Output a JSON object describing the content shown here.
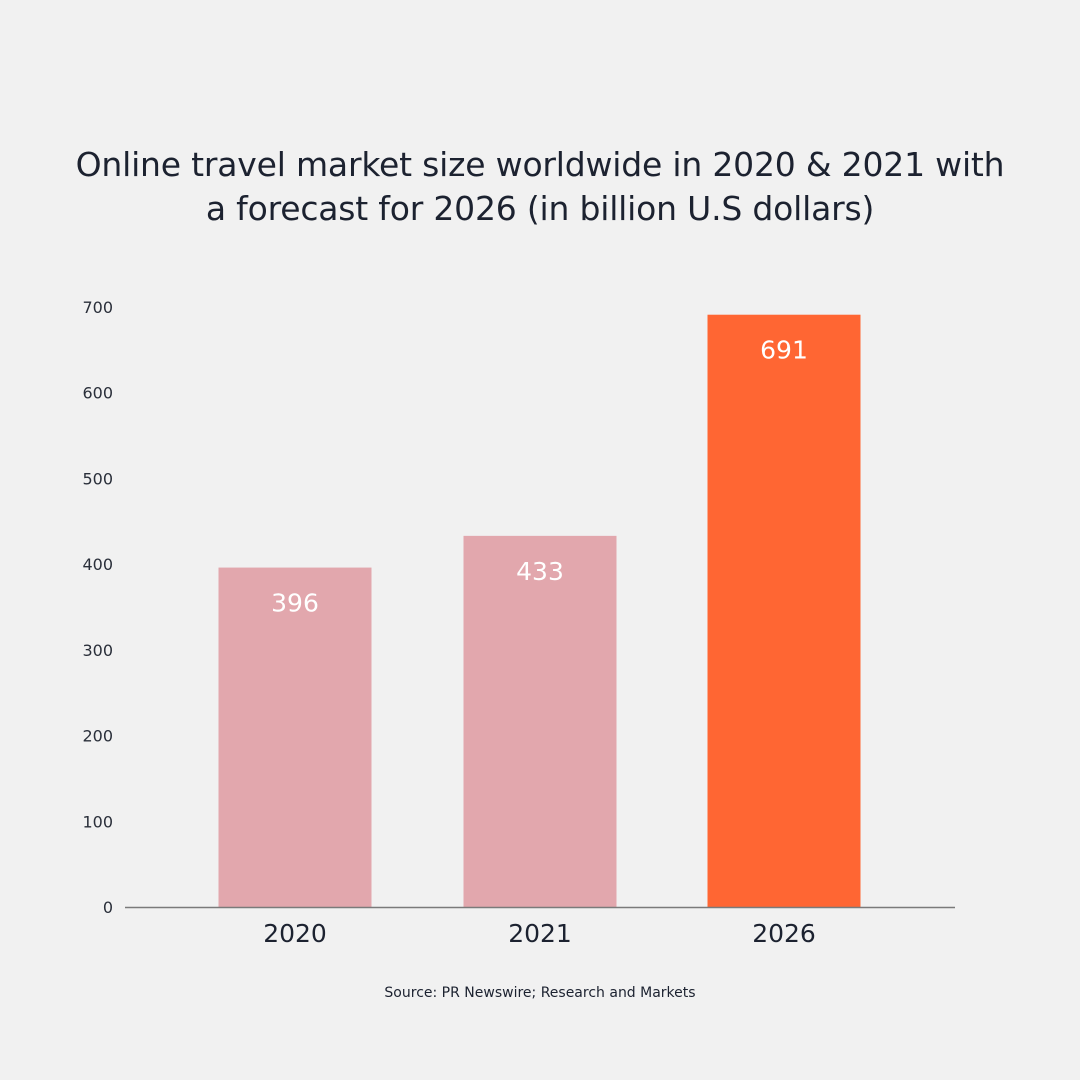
{
  "chart_data": {
    "type": "bar",
    "title_lines": [
      "Online travel market size worldwide in 2020 & 2021 with",
      "a forecast for 2026 (in billion U.S dollars)"
    ],
    "categories": [
      "2020",
      "2021",
      "2026"
    ],
    "values": [
      396,
      433,
      691
    ],
    "value_labels": [
      "396",
      "433",
      "691"
    ],
    "bar_colors": [
      "#e2a7ad",
      "#e2a7ad",
      "#ff6633"
    ],
    "ylim": [
      0,
      700
    ],
    "yticks": [
      0,
      100,
      200,
      300,
      400,
      500,
      600,
      700
    ],
    "ytick_labels": [
      "0",
      "100",
      "200",
      "300",
      "400",
      "500",
      "600",
      "700"
    ],
    "xlabel": "",
    "ylabel": "",
    "grid": false,
    "label_color": "#ffffff",
    "axis_color": "#7a7a7a"
  },
  "source": "Source: PR Newswire; Research and Markets"
}
